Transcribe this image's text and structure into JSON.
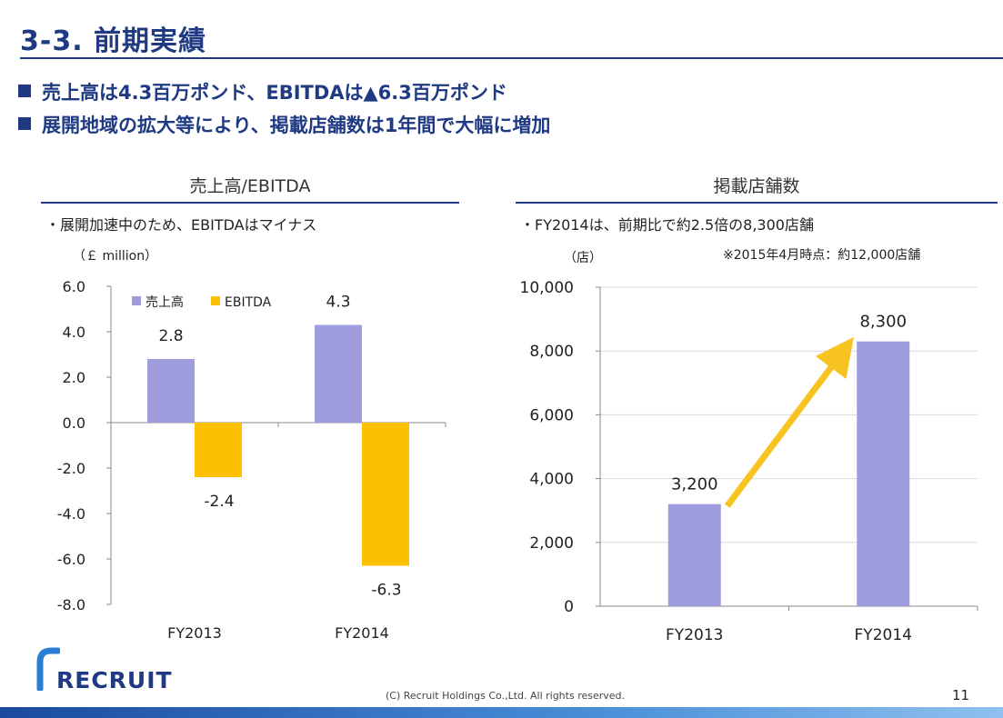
{
  "title": "3-3.  前期実績",
  "bullets": [
    "売上高は4.3百万ポンド、EBITDAは▲6.3百万ポンド",
    "展開地域の拡大等により、掲載店舗数は1年間で大幅に増加"
  ],
  "left_panel": {
    "section_title": "売上高/EBITDA",
    "note": "・展開加速中のため、EBITDAはマイナス"
  },
  "right_panel": {
    "section_title": "掲載店舗数",
    "note": "・FY2014は、前期比で約2.5倍の8,300店舗",
    "footnote": "※2015年4月時点：約12,000店舗"
  },
  "colors": {
    "purple": "#9e9cdc",
    "yellow": "#fcc000",
    "navy": "#1f3a82",
    "arrow": "#f7c320"
  },
  "chart_data": [
    {
      "type": "bar",
      "unit_label": "（￡ million）",
      "categories": [
        "FY2013",
        "FY2014"
      ],
      "series": [
        {
          "name": "売上高",
          "values": [
            2.8,
            4.3
          ],
          "labels": [
            "2.8",
            "4.3"
          ],
          "color": "#9e9cdc"
        },
        {
          "name": "EBITDA",
          "values": [
            -2.4,
            -6.3
          ],
          "labels": [
            "-2.4",
            "-6.3"
          ],
          "color": "#fcc000"
        }
      ],
      "ylim": [
        -8.0,
        6.0
      ],
      "yticks": [
        "6.0",
        "4.0",
        "2.0",
        "0.0",
        "-2.0",
        "-4.0",
        "-6.0",
        "-8.0"
      ],
      "legend": "top-left"
    },
    {
      "type": "bar",
      "unit_label": "（店）",
      "categories": [
        "FY2013",
        "FY2014"
      ],
      "series": [
        {
          "values": [
            3200,
            8300
          ],
          "labels": [
            "3,200",
            "8,300"
          ],
          "color": "#9e9cdc"
        }
      ],
      "ylim": [
        0,
        10000
      ],
      "yticks": [
        "10,000",
        "8,000",
        "6,000",
        "4,000",
        "2,000",
        "0"
      ],
      "grid": true,
      "annotation": "arrow from FY2013 to FY2014"
    }
  ],
  "footer": {
    "logo": "RECRUIT",
    "copyright": "(C) Recruit Holdings Co.,Ltd. All rights reserved.",
    "page": "11"
  }
}
